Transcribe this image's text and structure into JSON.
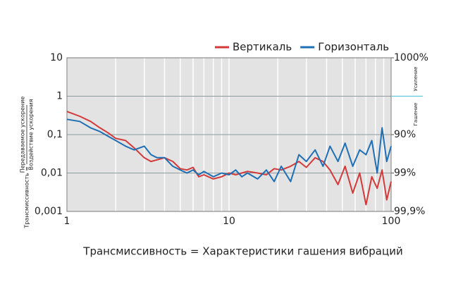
{
  "chart_data": {
    "type": "line",
    "xlabel": "Трансмиссивность = Характеристики гашения вибраций",
    "ylabel": "Трансмиссивность =",
    "ylabel_numerator": "Передаваемое ускорение",
    "ylabel_denominator": "Воздействие ускорения",
    "y2_labels": [
      "Усиление",
      "Гашение"
    ],
    "log_x": true,
    "log_y": true,
    "grid": true,
    "legend": "top-right",
    "xlim": [
      1,
      100
    ],
    "xticks": [
      1,
      10,
      100
    ],
    "ylim": [
      0.001,
      10
    ],
    "yticks": [
      10,
      1,
      {
        "value": 0.1,
        "label": "0,1"
      },
      {
        "value": 0.01,
        "label": "0,01"
      },
      {
        "value": 0.001,
        "label": "0,001"
      }
    ],
    "y2lim": [
      1000,
      99.9
    ],
    "y2ticks": [
      {
        "value": 1000,
        "label": "1000%"
      },
      {
        "value": 90,
        "label": "90%"
      },
      {
        "value": 99,
        "label": "99%"
      },
      {
        "value": 99.9,
        "label": "99,9%"
      }
    ],
    "x": [
      1,
      1.2,
      1.4,
      1.6,
      1.8,
      2,
      2.3,
      2.6,
      3,
      3.3,
      3.6,
      4,
      4.5,
      5,
      5.5,
      6,
      6.5,
      7,
      8,
      9,
      10,
      11,
      12,
      13,
      15,
      17,
      19,
      21,
      24,
      27,
      30,
      34,
      38,
      42,
      47,
      52,
      58,
      64,
      70,
      76,
      82,
      88,
      94,
      100
    ],
    "series": [
      {
        "name": "Вертикаль",
        "color": "#d23a3a",
        "values": [
          0.4,
          0.3,
          0.22,
          0.15,
          0.11,
          0.08,
          0.07,
          0.045,
          0.025,
          0.02,
          0.022,
          0.025,
          0.02,
          0.013,
          0.012,
          0.014,
          0.008,
          0.009,
          0.007,
          0.008,
          0.01,
          0.009,
          0.01,
          0.011,
          0.01,
          0.009,
          0.013,
          0.012,
          0.015,
          0.02,
          0.014,
          0.025,
          0.02,
          0.012,
          0.005,
          0.015,
          0.003,
          0.01,
          0.0015,
          0.008,
          0.004,
          0.012,
          0.002,
          0.006
        ]
      },
      {
        "name": "Горизонталь",
        "color": "#1f6fb5",
        "values": [
          0.25,
          0.22,
          0.15,
          0.12,
          0.09,
          0.07,
          0.05,
          0.04,
          0.05,
          0.03,
          0.025,
          0.025,
          0.015,
          0.012,
          0.01,
          0.012,
          0.009,
          0.011,
          0.008,
          0.01,
          0.009,
          0.012,
          0.008,
          0.01,
          0.007,
          0.012,
          0.006,
          0.015,
          0.006,
          0.03,
          0.02,
          0.04,
          0.015,
          0.05,
          0.02,
          0.06,
          0.015,
          0.04,
          0.03,
          0.07,
          0.01,
          0.15,
          0.02,
          0.05
        ]
      }
    ]
  }
}
